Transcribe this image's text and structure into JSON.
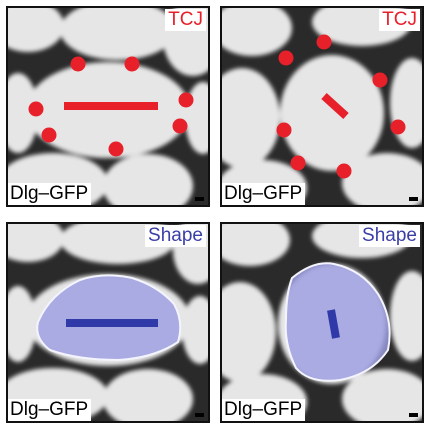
{
  "panels": [
    {
      "tag": "TCJ",
      "marker": "Dlg–GFP",
      "tag_color": "#e8202a"
    },
    {
      "tag": "TCJ",
      "marker": "Dlg–GFP",
      "tag_color": "#e8202a"
    },
    {
      "tag": "Shape",
      "marker": "Dlg–GFP",
      "tag_color": "#3a3fa6"
    },
    {
      "tag": "Shape",
      "marker": "Dlg–GFP",
      "tag_color": "#3a3fa6"
    }
  ],
  "colors": {
    "tcj_dot": "#e8202a",
    "shape_fill": "#9c9ee0",
    "shape_axis": "#2f3aa8"
  }
}
